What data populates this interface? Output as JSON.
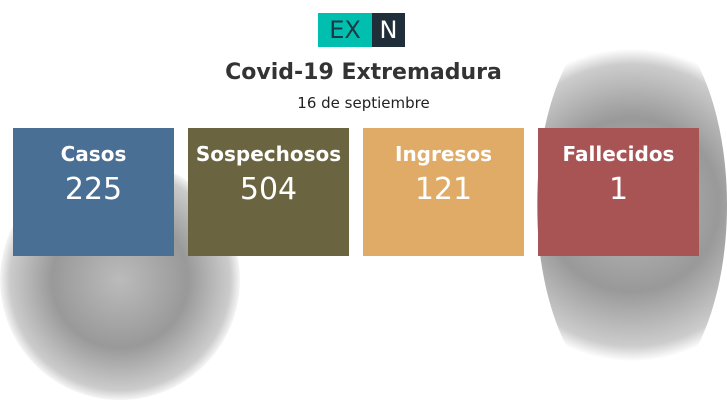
{
  "logo": {
    "left": "EX",
    "right": "N"
  },
  "title": "Covid-19 Extremadura",
  "date": "16 de septiembre",
  "cards": [
    {
      "label": "Casos",
      "value": "225",
      "color": "#4a6f94"
    },
    {
      "label": "Sospechosos",
      "value": "504",
      "color": "#6b6440"
    },
    {
      "label": "Ingresos",
      "value": "121",
      "color": "#e0ab66"
    },
    {
      "label": "Fallecidos",
      "value": "1",
      "color": "#a85455"
    }
  ]
}
